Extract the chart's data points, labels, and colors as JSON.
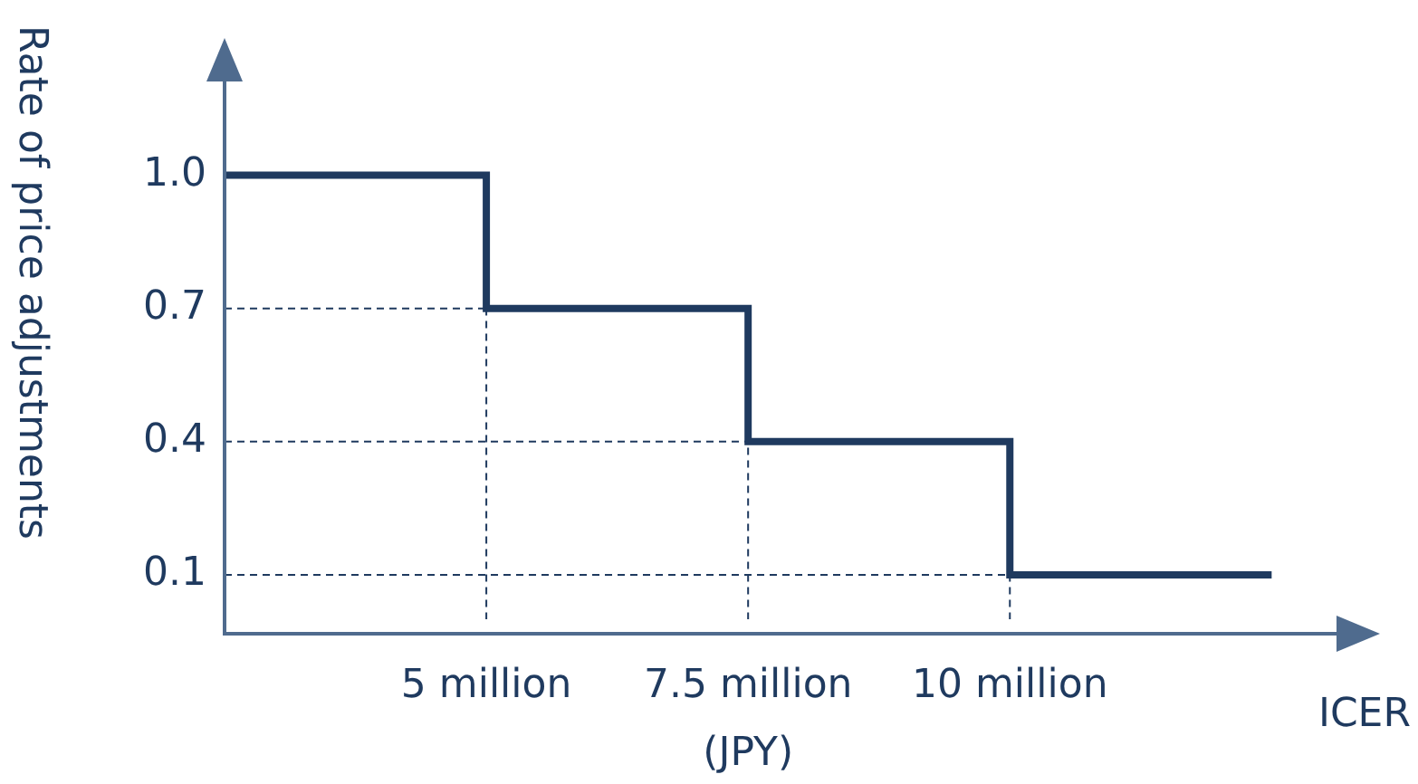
{
  "chart_data": {
    "type": "step",
    "ylabel": "Rate of price adjustments",
    "xlabel": "ICER",
    "annotations": [
      "(JPY)"
    ],
    "x": [
      2.5,
      5,
      7.5,
      10,
      12.5
    ],
    "series": [
      {
        "color": "#1f3a5f",
        "values": [
          1.0,
          0.7,
          0.4,
          0.1,
          0.1
        ]
      }
    ],
    "xlim": [
      2.5,
      13.5
    ],
    "xticks": [
      {
        "value": 5,
        "label": "5 million"
      },
      {
        "value": 7.5,
        "label": "7.5 million"
      },
      {
        "value": 10,
        "label": "10 million"
      }
    ],
    "ylim": [
      0,
      1.3
    ],
    "yticks": [
      0.1,
      0.4,
      0.7,
      {
        "value": 1,
        "label": "1.0"
      }
    ],
    "grid": true
  }
}
